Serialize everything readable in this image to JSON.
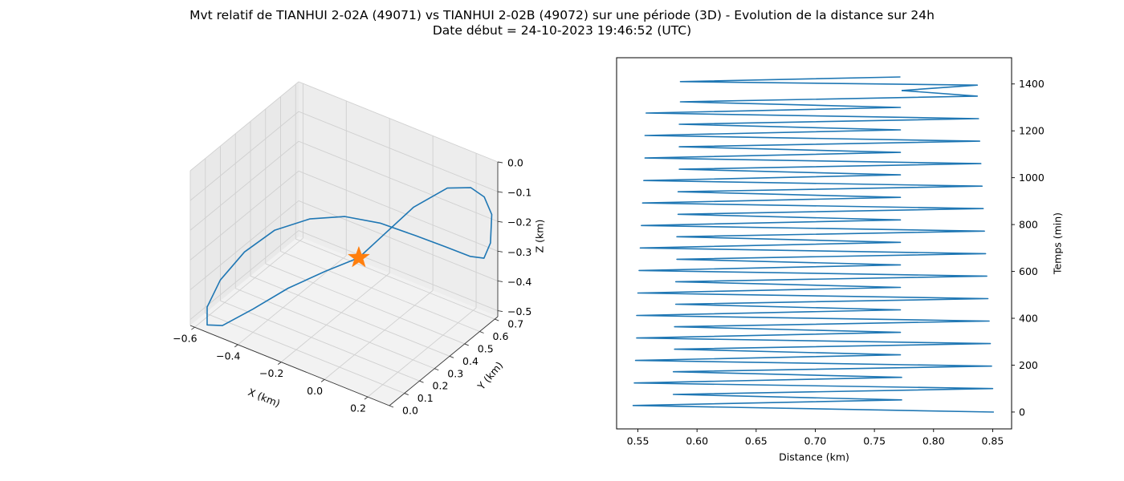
{
  "figure": {
    "title": "Mvt relatif de TIANHUI 2-02A (49071) vs TIANHUI 2-02B (49072) sur une période (3D) - Evolution de la distance sur 24h",
    "subtitle": "Date début = 24-10-2023 19:46:52 (UTC)"
  },
  "colors": {
    "line": "#1f77b4",
    "marker": "#ff7f0e",
    "pane": "#f2f2f2",
    "grid": "#d0d0d0"
  },
  "chart_data": [
    {
      "type": "line3d",
      "xlabel": "X (km)",
      "ylabel": "Y (km)",
      "zlabel": "Z (km)",
      "x_ticks": [
        "−0.6",
        "−0.4",
        "−0.2",
        "0.0",
        "0.2"
      ],
      "y_ticks": [
        "0.0",
        "0.1",
        "0.2",
        "0.3",
        "0.4",
        "0.5",
        "0.6",
        "0.7"
      ],
      "z_ticks": [
        "0.0",
        "−0.1",
        "−0.2",
        "−0.3",
        "−0.4",
        "−0.5"
      ],
      "xlim": [
        -0.62,
        0.3
      ],
      "ylim": [
        0.0,
        0.72
      ],
      "zlim": [
        -0.52,
        0.0
      ],
      "grid": true,
      "marker": {
        "symbol": "star",
        "x": -0.05,
        "y": 0.3,
        "z": -0.25
      },
      "points": [
        {
          "x": -0.05,
          "y": 0.3,
          "z": -0.25
        },
        {
          "x": 0.02,
          "y": 0.35,
          "z": -0.18
        },
        {
          "x": 0.12,
          "y": 0.42,
          "z": -0.08
        },
        {
          "x": 0.22,
          "y": 0.5,
          "z": -0.02
        },
        {
          "x": 0.28,
          "y": 0.57,
          "z": -0.03
        },
        {
          "x": 0.3,
          "y": 0.63,
          "z": -0.08
        },
        {
          "x": 0.3,
          "y": 0.68,
          "z": -0.16
        },
        {
          "x": 0.28,
          "y": 0.7,
          "z": -0.27
        },
        {
          "x": 0.25,
          "y": 0.7,
          "z": -0.33
        },
        {
          "x": 0.2,
          "y": 0.68,
          "z": -0.33
        },
        {
          "x": 0.12,
          "y": 0.63,
          "z": -0.3
        },
        {
          "x": 0.03,
          "y": 0.56,
          "z": -0.26
        },
        {
          "x": -0.07,
          "y": 0.47,
          "z": -0.21
        },
        {
          "x": -0.17,
          "y": 0.38,
          "z": -0.18
        },
        {
          "x": -0.27,
          "y": 0.29,
          "z": -0.18
        },
        {
          "x": -0.37,
          "y": 0.2,
          "z": -0.21
        },
        {
          "x": -0.46,
          "y": 0.13,
          "z": -0.28
        },
        {
          "x": -0.53,
          "y": 0.07,
          "z": -0.37
        },
        {
          "x": -0.57,
          "y": 0.04,
          "z": -0.46
        },
        {
          "x": -0.57,
          "y": 0.04,
          "z": -0.52
        },
        {
          "x": -0.52,
          "y": 0.07,
          "z": -0.52
        },
        {
          "x": -0.42,
          "y": 0.13,
          "z": -0.46
        },
        {
          "x": -0.3,
          "y": 0.19,
          "z": -0.38
        },
        {
          "x": -0.17,
          "y": 0.25,
          "z": -0.31
        },
        {
          "x": -0.05,
          "y": 0.3,
          "z": -0.25
        }
      ]
    },
    {
      "type": "line",
      "xlabel": "Distance (km)",
      "ylabel": "Temps (min)",
      "xlim": [
        0.532,
        0.866
      ],
      "ylim": [
        -72,
        1512
      ],
      "x_ticks": [
        0.55,
        0.6,
        0.65,
        0.7,
        0.75,
        0.8,
        0.85
      ],
      "x_tick_labels": [
        "0.55",
        "0.60",
        "0.65",
        "0.70",
        "0.75",
        "0.80",
        "0.85"
      ],
      "y_ticks": [
        0,
        200,
        400,
        600,
        800,
        1000,
        1200,
        1400
      ],
      "y_tick_labels": [
        "0",
        "200",
        "400",
        "600",
        "800",
        "1000",
        "1200",
        "1400"
      ],
      "grid": false,
      "series": [
        {
          "x": [
            0.851,
            0.546,
            0.773,
            0.58,
            0.85,
            0.547,
            0.773,
            0.58,
            0.849,
            0.548,
            0.772,
            0.581,
            0.848,
            0.549,
            0.772,
            0.581,
            0.847,
            0.549,
            0.772,
            0.582,
            0.846,
            0.55,
            0.772,
            0.582,
            0.845,
            0.551,
            0.772,
            0.583,
            0.844,
            0.552,
            0.772,
            0.583,
            0.843,
            0.553,
            0.772,
            0.584,
            0.842,
            0.554,
            0.772,
            0.584,
            0.841,
            0.555,
            0.772,
            0.585,
            0.84,
            0.556,
            0.772,
            0.585,
            0.839,
            0.556,
            0.772,
            0.585,
            0.838,
            0.557,
            0.772,
            0.586,
            0.837,
            0.773
          ],
          "y": [
            0,
            28,
            52,
            75,
            100,
            124,
            148,
            172,
            196,
            220,
            244,
            268,
            292,
            316,
            340,
            364,
            388,
            412,
            436,
            460,
            484,
            508,
            532,
            556,
            580,
            604,
            628,
            652,
            676,
            700,
            724,
            748,
            772,
            796,
            820,
            844,
            868,
            892,
            916,
            940,
            964,
            988,
            1012,
            1036,
            1060,
            1084,
            1108,
            1132,
            1156,
            1180,
            1204,
            1228,
            1252,
            1276,
            1300,
            1324,
            1348,
            1372
          ]
        },
        {
          "x": [
            0.773,
            0.837,
            0.586,
            0.772
          ],
          "y": [
            1372,
            1395,
            1410,
            1430
          ]
        }
      ]
    }
  ]
}
